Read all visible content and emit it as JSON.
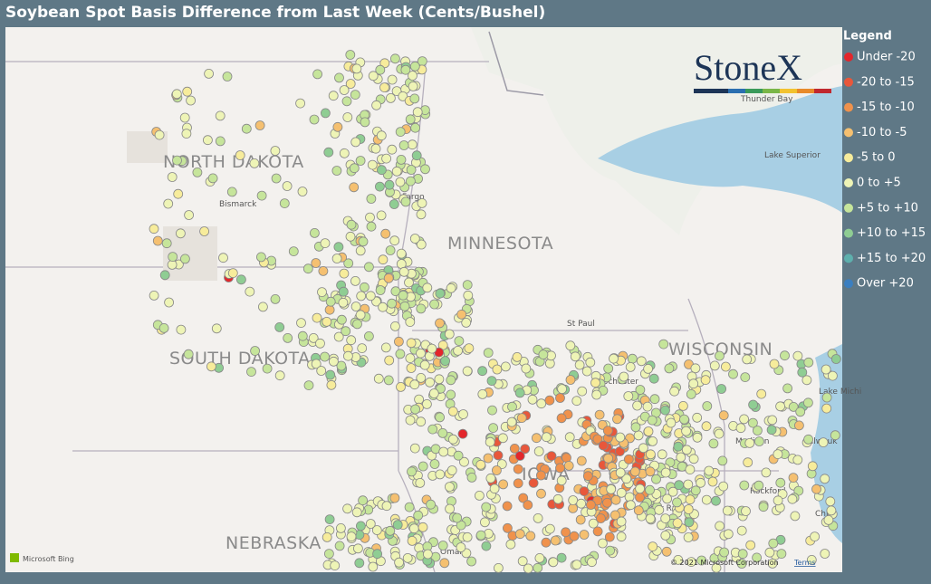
{
  "title": "Soybean Spot Basis Difference from Last Week (Cents/Bushel)",
  "logo": "StoneX",
  "legend": {
    "title": "Legend",
    "items": [
      {
        "label": "Under -20",
        "color": "#e3262b"
      },
      {
        "label": "-20 to -15",
        "color": "#e8573b"
      },
      {
        "label": "-15 to -10",
        "color": "#f0924c"
      },
      {
        "label": "-10 to -5",
        "color": "#f5c070"
      },
      {
        "label": "-5 to 0",
        "color": "#f7ec9b"
      },
      {
        "label": "0 to +5",
        "color": "#eef4b6"
      },
      {
        "label": "+5 to +10",
        "color": "#c6e59b"
      },
      {
        "label": "+10 to +15",
        "color": "#8fcd93"
      },
      {
        "label": "+15 to +20",
        "color": "#5eb0ad"
      },
      {
        "label": "Over +20",
        "color": "#3b7fc0"
      }
    ]
  },
  "map": {
    "states": [
      "NORTH DAKOTA",
      "MINNESOTA",
      "SOUTH DAKOTA",
      "WISCONSIN",
      "IOWA",
      "NEBRASKA"
    ],
    "places": [
      "Bismarck",
      "Fargo",
      "St Paul",
      "Rochester",
      "Madison",
      "Milwauk",
      "Rockford",
      "Cedar Rapids",
      "Omaha",
      "Thunder Bay",
      "Lake Superior",
      "Lake Michi",
      "Chica"
    ],
    "credits": {
      "bing": "Microsoft Bing",
      "copyright": "© 2021 Microsoft Corporation",
      "terms": "Terms"
    }
  }
}
